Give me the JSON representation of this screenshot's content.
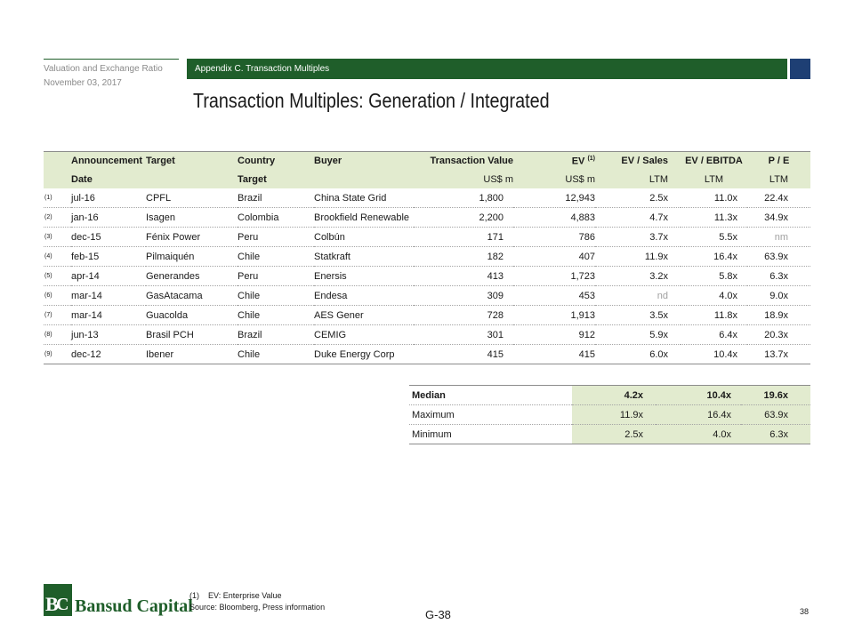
{
  "header": {
    "doc_title": "Valuation and Exchange Ratio",
    "doc_date": "November 03, 2017",
    "section": "Appendix C. Transaction Multiples",
    "title": "Transaction Multiples: Generation / Integrated"
  },
  "table": {
    "header_row1": {
      "announcement": "Announcement",
      "target": "Target",
      "country": "Country",
      "buyer": "Buyer",
      "transaction_value": "Transaction Value",
      "ev": "EV",
      "ev_note": "(1)",
      "ev_sales": "EV / Sales",
      "ev_ebitda": "EV / EBITDA",
      "pe": "P / E"
    },
    "header_row2": {
      "date": "Date",
      "target": "Target",
      "tv_unit": "US$ m",
      "ev_unit": "US$ m",
      "sales_basis": "LTM",
      "ebitda_basis": "LTM",
      "pe_basis": "LTM"
    },
    "rows": [
      {
        "note": "(1)",
        "date": "jul-16",
        "target": "CPFL",
        "country": "Brazil",
        "buyer": "China State Grid",
        "tv": "1,800",
        "ev": "12,943",
        "ev_sales": "2.5x",
        "ev_ebitda": "11.0x",
        "pe": "22.4x"
      },
      {
        "note": "(2)",
        "date": "jan-16",
        "target": "Isagen",
        "country": "Colombia",
        "buyer": "Brookfield Renewable",
        "tv": "2,200",
        "ev": "4,883",
        "ev_sales": "4.7x",
        "ev_ebitda": "11.3x",
        "pe": "34.9x"
      },
      {
        "note": "(3)",
        "date": "dec-15",
        "target": "Fénix Power",
        "country": "Peru",
        "buyer": "Colbún",
        "tv": "171",
        "ev": "786",
        "ev_sales": "3.7x",
        "ev_ebitda": "5.5x",
        "pe": "nm"
      },
      {
        "note": "(4)",
        "date": "feb-15",
        "target": "Pilmaiquén",
        "country": "Chile",
        "buyer": "Statkraft",
        "tv": "182",
        "ev": "407",
        "ev_sales": "11.9x",
        "ev_ebitda": "16.4x",
        "pe": "63.9x"
      },
      {
        "note": "(5)",
        "date": "apr-14",
        "target": "Generandes",
        "country": "Peru",
        "buyer": "Enersis",
        "tv": "413",
        "ev": "1,723",
        "ev_sales": "3.2x",
        "ev_ebitda": "5.8x",
        "pe": "6.3x"
      },
      {
        "note": "(6)",
        "date": "mar-14",
        "target": "GasAtacama",
        "country": "Chile",
        "buyer": "Endesa",
        "tv": "309",
        "ev": "453",
        "ev_sales": "nd",
        "ev_ebitda": "4.0x",
        "pe": "9.0x"
      },
      {
        "note": "(7)",
        "date": "mar-14",
        "target": "Guacolda",
        "country": "Chile",
        "buyer": "AES Gener",
        "tv": "728",
        "ev": "1,913",
        "ev_sales": "3.5x",
        "ev_ebitda": "11.8x",
        "pe": "18.9x"
      },
      {
        "note": "(8)",
        "date": "jun-13",
        "target": "Brasil PCH",
        "country": "Brazil",
        "buyer": "CEMIG",
        "tv": "301",
        "ev": "912",
        "ev_sales": "5.9x",
        "ev_ebitda": "6.4x",
        "pe": "20.3x"
      },
      {
        "note": "(9)",
        "date": "dec-12",
        "target": "Ibener",
        "country": "Chile",
        "buyer": "Duke Energy Corp",
        "tv": "415",
        "ev": "415",
        "ev_sales": "6.0x",
        "ev_ebitda": "10.4x",
        "pe": "13.7x"
      }
    ]
  },
  "summary": [
    {
      "label": "Median",
      "ev_sales": "4.2x",
      "ev_ebitda": "10.4x",
      "pe": "19.6x"
    },
    {
      "label": "Maximum",
      "ev_sales": "11.9x",
      "ev_ebitda": "16.4x",
      "pe": "63.9x"
    },
    {
      "label": "Minimum",
      "ev_sales": "2.5x",
      "ev_ebitda": "4.0x",
      "pe": "6.3x"
    }
  ],
  "footer": {
    "logo_mark_b": "B",
    "logo_mark_c": "C",
    "logo_text": "Bansud Capital",
    "footnote1_num": "(1)",
    "footnote1_text": "EV: Enterprise Value",
    "source": "Source: Bloomberg,  Press information",
    "page_code": "G-38",
    "page_number": "38"
  },
  "colors": {
    "brand_green": "#1f5e2a",
    "brand_blue": "#1e3f74",
    "header_fill": "#e2ebcf",
    "muted_text": "#a0a0a0"
  }
}
